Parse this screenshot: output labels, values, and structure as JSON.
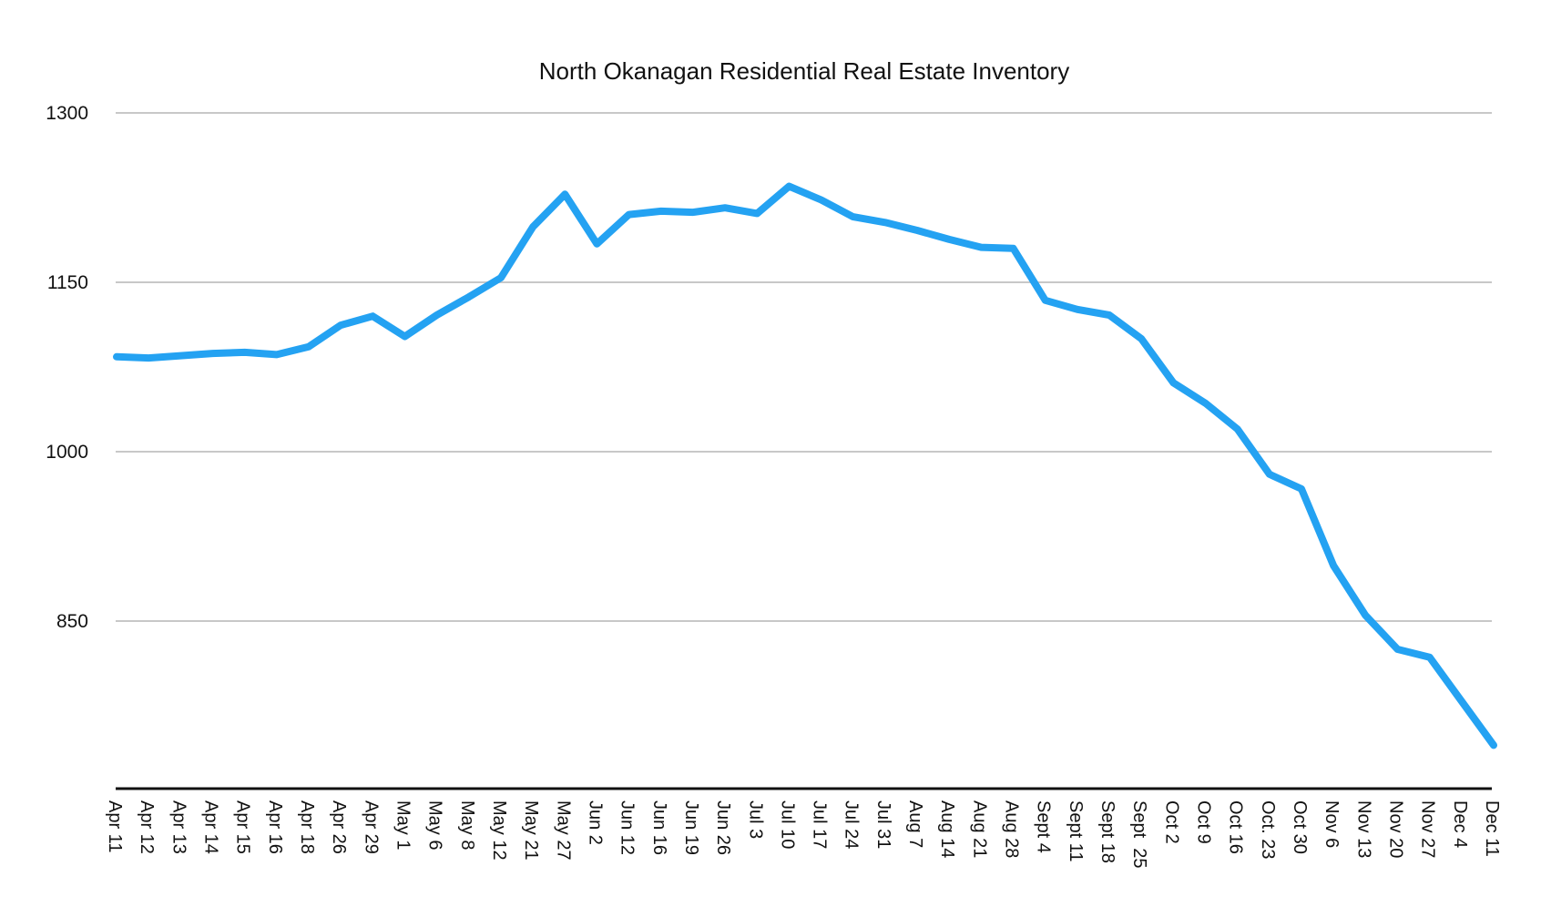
{
  "chart_data": {
    "type": "line",
    "title": "North Okanagan Residential Real Estate Inventory",
    "xlabel": "",
    "ylabel": "",
    "ylim": [
      720,
      1300
    ],
    "yticks": [
      850,
      1000,
      1150,
      1300
    ],
    "grid": true,
    "legend": "none",
    "categories": [
      "Apr 11",
      "Apr 12",
      "Apr 13",
      "Apr 14",
      "Apr 15",
      "Apr 16",
      "Apr 18",
      "Apr 26",
      "Apr 29",
      "May 1",
      "May 6",
      "May 8",
      "May 12",
      "May 21",
      "May 27",
      "Jun 2",
      "Jun 12",
      "Jun 16",
      "Jun 19",
      "Jun 26",
      "Jul 3",
      "Jul 10",
      "Jul 17",
      "Jul 24",
      "Jul 31",
      "Aug 7",
      "Aug 14",
      "Aug 21",
      "Aug 28",
      "Sept 4",
      "Sept 11",
      "Sept 18",
      "Sept  25",
      "Oct 2",
      "Oct 9",
      "Oct 16",
      "Oct. 23",
      "Oct 30",
      "Nov 6",
      "Nov 13",
      "Nov 20",
      "Nov 27",
      "Dec 4",
      "Dec 11"
    ],
    "series": [
      {
        "color": "#24a2f2",
        "values": [
          1084,
          1083,
          1085,
          1087,
          1088,
          1086,
          1093,
          1112,
          1120,
          1102,
          1121,
          1137,
          1154,
          1199,
          1228,
          1184,
          1210,
          1213,
          1212,
          1216,
          1211,
          1235,
          1223,
          1208,
          1203,
          1196,
          1188,
          1181,
          1180,
          1134,
          1126,
          1121,
          1100,
          1061,
          1043,
          1020,
          980,
          967,
          899,
          855,
          825,
          818,
          779,
          740
        ]
      }
    ]
  }
}
